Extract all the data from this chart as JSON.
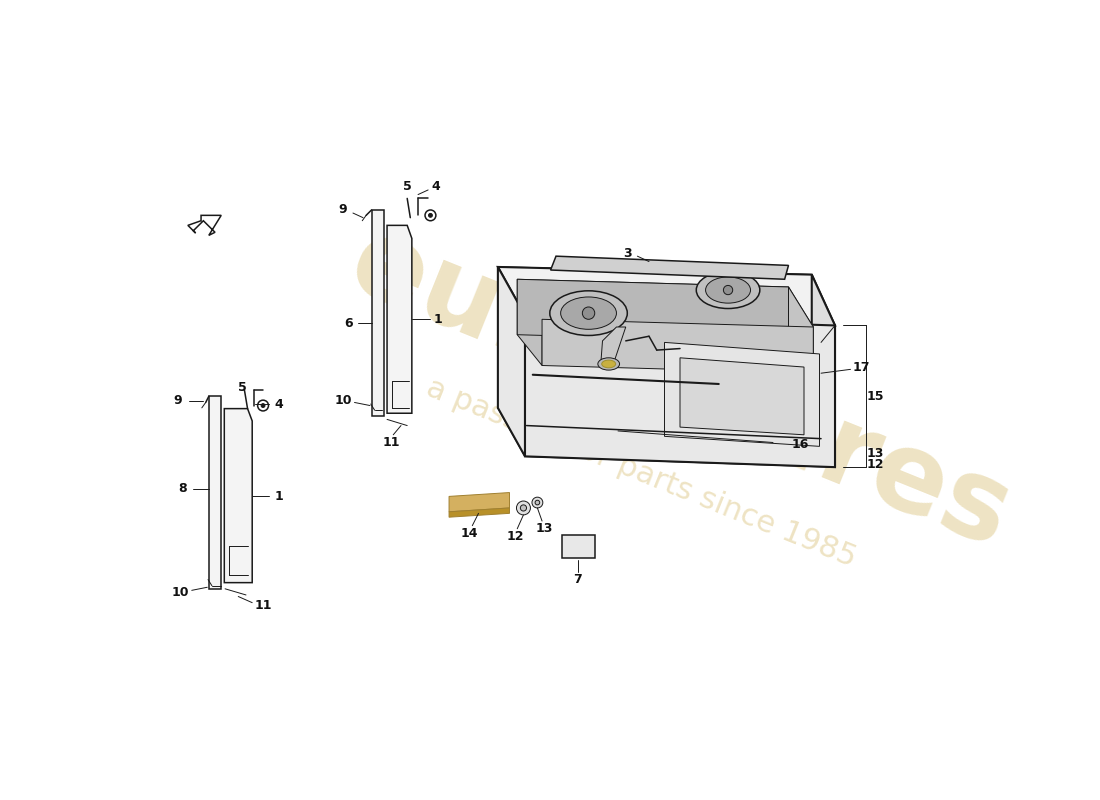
{
  "background_color": "#ffffff",
  "line_color": "#1a1a1a",
  "label_color": "#111111",
  "watermark_color": "#c8a43a",
  "tank_top_color": "#f2f2f2",
  "tank_front_color": "#e8e8e8",
  "tank_right_color": "#dedede",
  "tank_inner_color": "#d0d0d0",
  "panel_face_color": "#f4f4f4",
  "strip_color": "#cccccc",
  "yellow_strip_color": "#d4b060",
  "pump_color": "#c0c0c0",
  "pump_inner_color": "#a8a8a8"
}
